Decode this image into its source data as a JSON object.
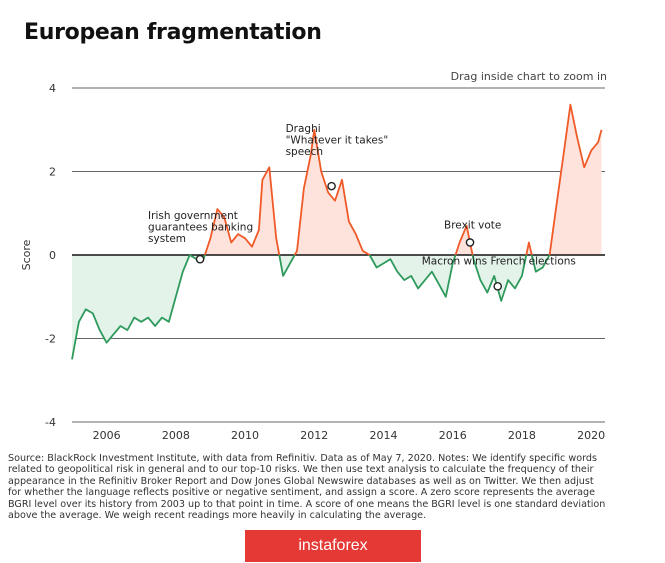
{
  "colors": {
    "positive_line": "#f05a28",
    "negative_line": "#2e9a5c",
    "positive_fill": "#fde3dc",
    "negative_fill": "#e3f3ea",
    "axis": "#111111",
    "grid": "#333333",
    "brand_bg": "#e53935"
  },
  "hint": "Drag inside chart to zoom in",
  "source_note": "Source: BlackRock Investment Institute, with data from Refinitiv. Data as of May 7, 2020. Notes: We identify specific words related to geopolitical risk in general and to our top-10 risks. We then use text analysis to calculate the frequency of their appearance in the Refinitiv Broker Report and Dow Jones Global Newswire databases as well as on Twitter. We then adjust for whether the language reflects positive or negative sentiment, and assign a score. A zero score represents the average BGRI level over its history from 2003 up to that point in time. A score of one means the BGRI level is one standard deviation above the average. We weigh recent readings more heavily in calculating the average.",
  "brand": "instaforex",
  "chart_data": {
    "type": "area",
    "title": "European fragmentation",
    "ylabel": "Score",
    "xlabel": "",
    "ylim": [
      -4,
      4
    ],
    "xlim": [
      2005,
      2020.4
    ],
    "yticks": [
      "4",
      "2",
      "0",
      "-2",
      "-4"
    ],
    "xticks": [
      "2006",
      "2008",
      "2010",
      "2012",
      "2014",
      "2016",
      "2018",
      "2020"
    ],
    "grid": "horizontal",
    "series": [
      {
        "x": [
          2005.0,
          2005.2,
          2005.4,
          2005.6,
          2005.8,
          2006.0,
          2006.2,
          2006.4,
          2006.6,
          2006.8,
          2007.0,
          2007.2,
          2007.4,
          2007.6,
          2007.8,
          2008.0,
          2008.2,
          2008.4,
          2008.6,
          2008.8,
          2009.0,
          2009.2,
          2009.4,
          2009.6,
          2009.8,
          2010.0,
          2010.2,
          2010.4,
          2010.5,
          2010.7,
          2010.9,
          2011.1,
          2011.3,
          2011.5,
          2011.7,
          2011.9,
          2012.0,
          2012.2,
          2012.4,
          2012.6,
          2012.8,
          2013.0,
          2013.2,
          2013.4,
          2013.6,
          2013.8,
          2014.0,
          2014.2,
          2014.4,
          2014.6,
          2014.8,
          2015.0,
          2015.2,
          2015.4,
          2015.6,
          2015.8,
          2016.0,
          2016.2,
          2016.4,
          2016.6,
          2016.8,
          2017.0,
          2017.2,
          2017.4,
          2017.6,
          2017.8,
          2018.0,
          2018.2,
          2018.4,
          2018.6,
          2018.8,
          2019.0,
          2019.2,
          2019.4,
          2019.6,
          2019.8,
          2020.0,
          2020.2,
          2020.3
        ],
        "values": [
          -2.5,
          -1.6,
          -1.3,
          -1.4,
          -1.8,
          -2.1,
          -1.9,
          -1.7,
          -1.8,
          -1.5,
          -1.6,
          -1.5,
          -1.7,
          -1.5,
          -1.6,
          -1.0,
          -0.4,
          0.0,
          -0.1,
          -0.1,
          0.4,
          1.1,
          0.9,
          0.3,
          0.5,
          0.4,
          0.2,
          0.6,
          1.8,
          2.1,
          0.4,
          -0.5,
          -0.2,
          0.1,
          1.6,
          2.4,
          3.0,
          2.0,
          1.5,
          1.3,
          1.8,
          0.8,
          0.5,
          0.1,
          0.0,
          -0.3,
          -0.2,
          -0.1,
          -0.4,
          -0.6,
          -0.5,
          -0.8,
          -0.6,
          -0.4,
          -0.7,
          -1.0,
          -0.2,
          0.3,
          0.7,
          -0.1,
          -0.6,
          -0.9,
          -0.5,
          -1.1,
          -0.6,
          -0.8,
          -0.5,
          0.3,
          -0.4,
          -0.3,
          0.0,
          1.2,
          2.4,
          3.6,
          2.8,
          2.1,
          2.5,
          2.7,
          3.0
        ]
      }
    ],
    "annotations": [
      {
        "text": "Irish government\nguarantees banking\nsystem",
        "x": 2008.7,
        "y": -0.1
      },
      {
        "text": "Draghi\n\"Whatever it takes\"\nspeech",
        "x": 2012.5,
        "y": 1.65
      },
      {
        "text": "Brexit vote",
        "x": 2016.5,
        "y": 0.3
      },
      {
        "text": "Macron wins French elections",
        "x": 2017.3,
        "y": -0.75
      }
    ]
  }
}
